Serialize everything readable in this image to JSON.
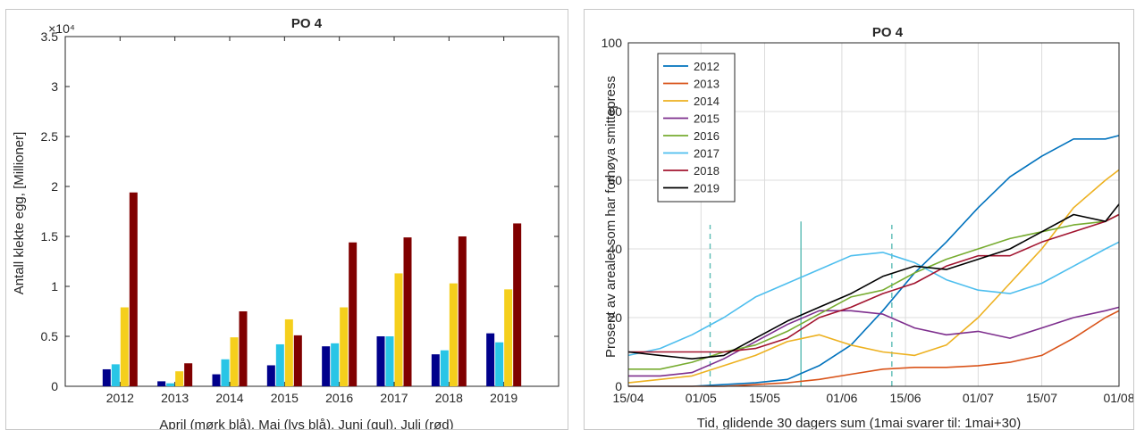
{
  "chart_data": [
    {
      "type": "bar",
      "title": "PO 4",
      "xlabel": "April (mørk blå), Mai (lys blå), Juni (gul), Juli (rød)",
      "ylabel": "Antall klekte egg, [Millioner]",
      "exponent_label": "×10⁴",
      "ylim": [
        0,
        3.5
      ],
      "yticks": [
        "0",
        "0.5",
        "1",
        "1.5",
        "2",
        "2.5",
        "3",
        "3.5"
      ],
      "categories": [
        "2012",
        "2013",
        "2014",
        "2015",
        "2016",
        "2017",
        "2018",
        "2019"
      ],
      "series": [
        {
          "color": "#00008b",
          "values": [
            0.17,
            0.05,
            0.12,
            0.21,
            0.4,
            0.5,
            0.32,
            0.53
          ]
        },
        {
          "color": "#29c5e6",
          "values": [
            0.22,
            0.03,
            0.27,
            0.42,
            0.43,
            0.5,
            0.36,
            0.44
          ]
        },
        {
          "color": "#f5cf1c",
          "values": [
            0.79,
            0.15,
            0.49,
            0.67,
            0.79,
            1.13,
            1.03,
            0.97
          ]
        },
        {
          "color": "#800000",
          "values": [
            1.94,
            0.23,
            0.75,
            0.51,
            1.44,
            1.49,
            1.5,
            1.63
          ]
        }
      ],
      "grid": false,
      "legend": "none"
    },
    {
      "type": "line",
      "title": "PO 4",
      "xlabel": "Tid, glidende 30 dagers sum (1mai svarer til: 1mai+30)",
      "ylabel": "Prosent av arealet som har forhøya smittepress",
      "ylim": [
        0,
        100
      ],
      "yticks": [
        "0",
        "20",
        "40",
        "60",
        "80",
        "100"
      ],
      "xticks": [
        "15/04",
        "01/05",
        "15/05",
        "01/06",
        "15/06",
        "01/07",
        "15/07",
        "01/08"
      ],
      "xlim": [
        "15/04",
        "01/08"
      ],
      "grid": true,
      "legend": "top-left",
      "vlines": [
        {
          "date": "03/05",
          "color": "#5bbcb4",
          "style": "dashed",
          "ymax": 47
        },
        {
          "date": "23/05",
          "color": "#5bbcb4",
          "style": "solid",
          "ymax": 48
        },
        {
          "date": "12/06",
          "color": "#5bbcb4",
          "style": "dashed",
          "ymax": 47
        }
      ],
      "x": [
        "15/04",
        "22/04",
        "29/04",
        "06/05",
        "13/05",
        "20/05",
        "27/05",
        "03/06",
        "10/06",
        "17/06",
        "24/06",
        "01/07",
        "08/07",
        "15/07",
        "22/07",
        "29/07",
        "01/08"
      ],
      "series": [
        {
          "name": "2012",
          "color": "#0072bd",
          "values": [
            0,
            0,
            0,
            0.5,
            1,
            2,
            6,
            12,
            22,
            33,
            42,
            52,
            61,
            67,
            72,
            72,
            73
          ]
        },
        {
          "name": "2013",
          "color": "#d95319",
          "values": [
            0,
            0,
            0,
            0,
            0.5,
            1,
            2,
            3.5,
            5,
            5.5,
            5.5,
            6,
            7,
            9,
            14,
            20,
            22
          ]
        },
        {
          "name": "2014",
          "color": "#edb120",
          "values": [
            1,
            2,
            3,
            6,
            9,
            13,
            15,
            12,
            10,
            9,
            12,
            20,
            30,
            40,
            52,
            60,
            63
          ]
        },
        {
          "name": "2015",
          "color": "#7e2f8e",
          "values": [
            3,
            3,
            4,
            8,
            13,
            18,
            22,
            22,
            21,
            17,
            15,
            16,
            14,
            17,
            20,
            22,
            23
          ]
        },
        {
          "name": "2016",
          "color": "#77ac30",
          "values": [
            5,
            5,
            7,
            10,
            12,
            16,
            21,
            26,
            28,
            33,
            37,
            40,
            43,
            45,
            47,
            48,
            50
          ]
        },
        {
          "name": "2017",
          "color": "#4dbeee",
          "values": [
            9,
            11,
            15,
            20,
            26,
            30,
            34,
            38,
            39,
            36,
            31,
            28,
            27,
            30,
            35,
            40,
            42
          ]
        },
        {
          "name": "2018",
          "color": "#a2142f",
          "values": [
            10,
            10,
            10,
            10,
            11,
            14,
            20,
            23,
            27,
            30,
            35,
            38,
            38,
            42,
            45,
            48,
            50
          ]
        },
        {
          "name": "2019",
          "color": "#000000",
          "values": [
            10,
            9,
            8,
            9,
            14,
            19,
            23,
            27,
            32,
            35,
            34,
            37,
            40,
            45,
            50,
            48,
            53
          ]
        }
      ]
    }
  ]
}
